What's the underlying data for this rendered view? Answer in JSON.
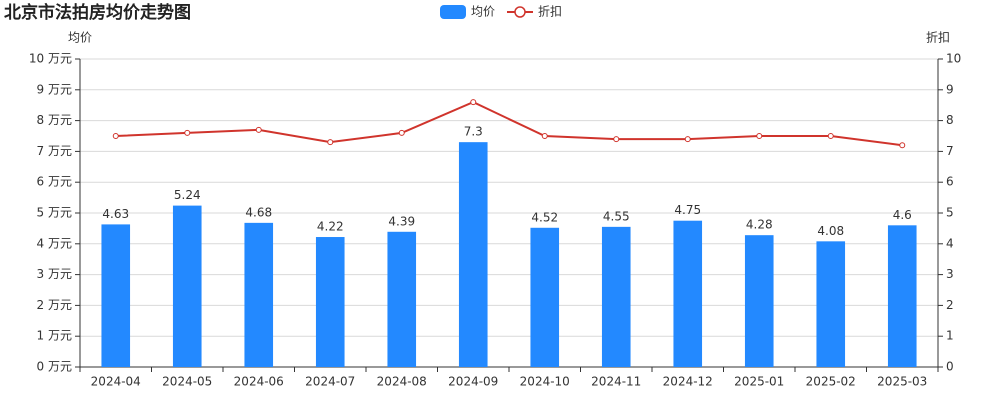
{
  "chart_data": {
    "type": "bar-line",
    "title": "北京市法拍房均价走势图",
    "y_label": "均价",
    "y2_label": "折扣",
    "categories": [
      "2024-04",
      "2024-05",
      "2024-06",
      "2024-07",
      "2024-08",
      "2024-09",
      "2024-10",
      "2024-11",
      "2024-12",
      "2025-01",
      "2025-02",
      "2025-03"
    ],
    "series": [
      {
        "name": "均价",
        "type": "bar",
        "color": "#2389ff",
        "axis": "y",
        "values": [
          4.63,
          5.24,
          4.68,
          4.22,
          4.39,
          7.3,
          4.52,
          4.55,
          4.75,
          4.28,
          4.08,
          4.6
        ]
      },
      {
        "name": "折扣",
        "type": "line",
        "color": "#d0342c",
        "axis": "y2",
        "values": [
          7.5,
          7.6,
          7.7,
          7.3,
          7.6,
          8.6,
          7.5,
          7.4,
          7.4,
          7.5,
          7.5,
          7.2
        ]
      }
    ],
    "ylim": [
      0,
      10
    ],
    "yticks": [
      {
        "value": 0,
        "label": "0 万元"
      },
      {
        "value": 1,
        "label": "1 万元"
      },
      {
        "value": 2,
        "label": "2 万元"
      },
      {
        "value": 3,
        "label": "3 万元"
      },
      {
        "value": 4,
        "label": "4 万元"
      },
      {
        "value": 5,
        "label": "5 万元"
      },
      {
        "value": 6,
        "label": "6 万元"
      },
      {
        "value": 7,
        "label": "7 万元"
      },
      {
        "value": 8,
        "label": "8 万元"
      },
      {
        "value": 9,
        "label": "9 万元"
      },
      {
        "value": 10,
        "label": "10 万元"
      }
    ],
    "y2lim": [
      0,
      10
    ],
    "y2ticks": [
      0,
      1,
      2,
      3,
      4,
      5,
      6,
      7,
      8,
      9,
      10
    ],
    "grid": true
  }
}
